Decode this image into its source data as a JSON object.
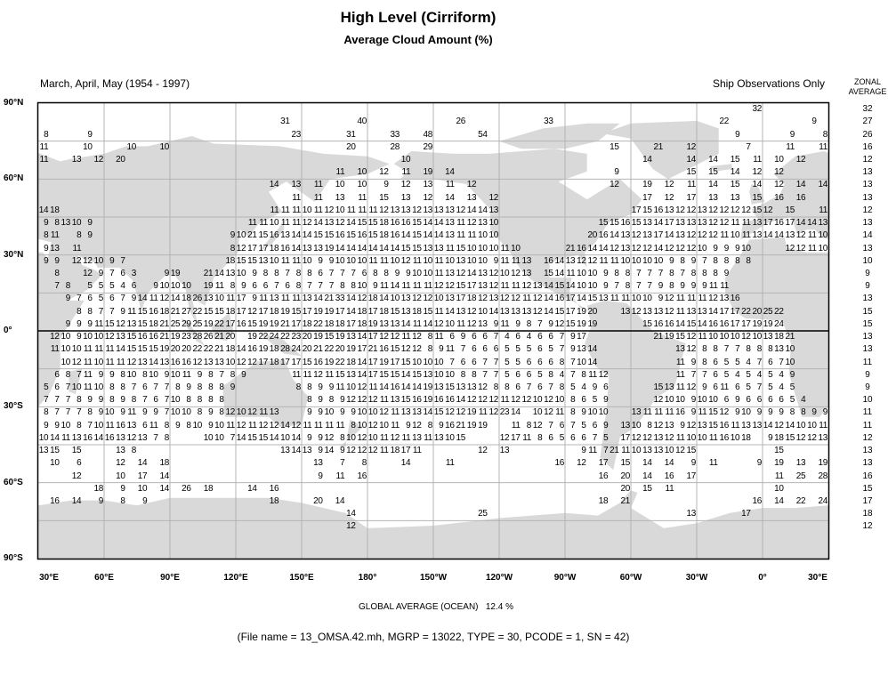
{
  "title": "High Level (Cirriform)",
  "subtitle": "Average Cloud Amount (%)",
  "season": "March, April, May (1954 - 1997)",
  "source_note": "Ship Observations Only",
  "zonal_header": {
    "line1": "ZONAL",
    "line2": "AVERAGE"
  },
  "lat_labels": [
    "90°N",
    "60°N",
    "30°N",
    "0°",
    "30°S",
    "60°S",
    "90°S"
  ],
  "lon_labels": [
    "30°E",
    "60°E",
    "90°E",
    "120°E",
    "150°E",
    "180°",
    "150°W",
    "120°W",
    "90°W",
    "60°W",
    "30°W",
    "0°",
    "30°E"
  ],
  "global_average": {
    "label": "GLOBAL AVERAGE (OCEAN)",
    "value": "12.4 %"
  },
  "file_info": "(File name = 13_OMSA.42.mh, MGRP = 13022, TYPE = 30, PCODE = 1, SN = 42)",
  "colors": {
    "land": "#d9d9d9",
    "grid": "#b4b4b4",
    "equator": "#000000",
    "text": "#000000"
  },
  "map_data": {
    "type": "gridded values map",
    "cell_size_deg": 5,
    "first_cell_west_edge": "30°E",
    "rows": [
      {
        "lat": 87.5,
        "zonal": 32,
        "cells": "- - - - - -|- - - - - -|- - - - - -|- - - - - -|- - - - - -|- - - - - -|- - - - - -|- - - - - -|- - - - - -|- - - - - -|- - - - - 32|- - - - - -"
      },
      {
        "lat": 82.5,
        "zonal": 27,
        "cells": "- - - - - -|- - - - - -|- - - - - -|- - - - 31 -|- - - - - 40|- - - - - -|- - 26 - - -|- - - - 33 -|- - - - - -|- - - - - -|- - 22 - - -|- - - - 9 -"
      },
      {
        "lat": 77.5,
        "zonal": 26,
        "cells": "8 - - - 9 -|- - - - - -|- - - - - -|- - - - - 23|- - - - 31 -|- - 33 - - 48|- - - - 54 -|- - - - - -|- - - - - -|- - - - - -|- - - 9 - -|- - 9 - - 8"
      },
      {
        "lat": 72.5,
        "zonal": 16,
        "cells": "11 - - - 10 -|- - 10 - - 10|- - - - - -|- - - - - -|- - - - 20 -|- - 28 - - 29|- - - - - -|- - - - - -|- - - - 15 -|- - 21 - - 12|- - - - 7 -|- - 11 - - 11"
      },
      {
        "lat": 67.5,
        "zonal": 12,
        "cells": "11 - - 13 - 12|- 20 - - - -|- - - - - -|- - - - - -|- - - - - -|- - - 10 - -|- - - - - -|- - - - - -|- - - - - -|- 14 - - - 14|- 14 - 15 - 11|- 10 - 12 - -"
      },
      {
        "lat": 62.5,
        "zonal": 13,
        "cells": "- - - - - -|- - - - - -|- - - - - -|- - - - - -|- - - 11 - 10|- 12 - 11 - 19|- 14 - - - -|- - - - - -|- - - - 9 -|- - - - - 15|- 15 - 14 - 12|- 12 - - - -"
      },
      {
        "lat": 57.5,
        "zonal": 13,
        "cells": "- - - - - -|- - - - - -|- - - - - -|- - - 14 - 13|- 11 - 10 - 10|- 9 - 12 - 13|- 11 - 12 - -|- - - - - -|- - - - 12 -|- 19 - 12 - 11|- 14 - 15 - 14|- 12 - 14 - 14"
      },
      {
        "lat": 52.5,
        "zonal": 13,
        "cells": "- - - - - -|- - - - - -|- - - - - -|- - - - - 11|- 11 - 13 - 11|- 15 - 13 - 12|- 14 - 13 - 12|- - - - - -|- - - - - -|- 17 - 12 - 17|- 13 - 13 - 15|- 16 - 16 - -"
      },
      {
        "lat": 47.5,
        "zonal": 12,
        "cells": "14 18 - - - -|- - - - - -|- - - - - -|- - - 11 11 11|10 11 12 10 11 11|11 12 13 13 12 13|13 13 12 14 14 13|- - - - - -|- - - - - -|17 15 16 13 12 12|13 12 12 12 12 15|12 - 15 - - 11"
      },
      {
        "lat": 42.5,
        "zonal": 13,
        "cells": "9 8 13 10 9 -|- - - - - -|- - - - - -|- 11 11 10 11 11|12 14 13 12 14 15|15 18 16 16 15 14|14 13 11 12 13 10|- - - - - -|- - - 15 15 16|15 13 14 17 13 13|13 12 12 11 11 13|17 16 17 14 14 13"
      },
      {
        "lat": 37.5,
        "zonal": 14,
        "cells": "8 11 - 8 9 -|- - - - - -|- - - - - 9|10 21 15 16 13 14|14 15 15 16 15 16|15 18 16 14 15 14|14 13 11 11 10 10|- - - - - -|- - 20 16 14 13|12 13 17 14 13 12|12 12 11 10 11 13|14 14 13 12 11 10"
      },
      {
        "lat": 32.5,
        "zonal": 13,
        "cells": "9 13 - 11 - -|- - - - - -|- - - - - 8|12 17 17 18 16 14|13 13 19 14 14 14|14 14 14 15 15 13|13 11 15 10 10 10|11 10 - - - -|21 16 14 14 12 13|12 12 14 12 12 12|10 9 9 9 10 -|- - 12 12 11 10"
      },
      {
        "lat": 27.5,
        "zonal": 10,
        "cells": "9 9 - 12 12 10|9 7 - - - -|- - - - - 18|15 15 13 10 11 11|10 9 9 10 10 10|11 11 10 12 11 10|11 10 13 10 10 9|11 11 13 - 16 14|13 12 12 11 11 10|10 10 10 9 8 9|7 8 8 8 8 -|- - - - - -"
      },
      {
        "lat": 22.5,
        "zonal": 9,
        "cells": "- 8 - - 12 9|7 6 3 - - 9|19 - - 21 14 13|10 9 8 8 7 8|8 6 7 7 7 6|8 8 9 9 10 10|11 13 12 14 13 12|10 12 13 - 15 14|11 10 10 9 8 8|7 7 7 8 7 8|8 8 9 - - -|- - - - - -"
      },
      {
        "lat": 17.5,
        "zonal": 9,
        "cells": "- 7 8 - 5 5|5 4 6 - 9 10|10 10 - 19 11 8|9 6 6 7 6 8|7 7 7 8 8 10|9 11 14 11 11 11|12 12 15 17 13 12|11 11 12 13 14 15|14 10 10 9 7 8|7 7 9 8 9 9|9 11 11 - - -|- - - - - -"
      },
      {
        "lat": 12.5,
        "zonal": 13,
        "cells": "- - 9 7 6 5|6 7 9 14 11 12|14 18 26 13 10 11|17 9 11 13 11 11|13 14 21 33 14 12|18 14 10 13 12 12|10 13 17 18 12 13|12 12 11 12 14 16|17 14 15 13 11 11|10 10 9 12 11 11|11 12 13 16 - -|- - - - - -"
      },
      {
        "lat": 7.5,
        "zonal": 15,
        "cells": "- - - 8 8 7|7 9 11 15 16 18|21 27 22 15 15 18|17 12 17 18 19 15|17 19 19 17 14 18|17 18 15 13 18 15|11 14 13 12 10 14|13 13 13 12 14 15|17 19 20 - - 13|12 13 13 12 11 13|13 14 17 17 22 20|25 22 - - - -"
      },
      {
        "lat": 2.5,
        "zonal": 15,
        "cells": "- - 9 9 9 11|15 12 13 15 18 21|25 29 25 19 22 17|16 15 19 19 21 17|18 22 18 18 17 18|19 13 13 14 11 14|12 10 11 12 13 9|11 9 8 7 9 12|15 19 19 - - -|- 15 16 16 14 15|14 16 16 17 17 19|19 24 - - - -"
      },
      {
        "lat": -2.5,
        "zonal": 13,
        "cells": "- 12 10 9 10 10|12 13 15 16 16 21|19 23 28 26 21 20|- 19 22 24 22 23|20 19 15 19 13 14|17 12 12 11 12 8|11 6 9 6 6 7|4 6 4 6 6 7|9 17 - - - -|- - 21 19 15 12|11 10 10 10 12 10|13 18 21 - - -"
      },
      {
        "lat": -7.5,
        "zonal": 13,
        "cells": "- 11 10 10 11 11|11 14 15 15 15 19|20 20 22 22 21 18|14 16 19 18 28 24|20 21 22 20 19 17|21 16 15 12 12 8|9 11 7 6 6 6|5 5 5 6 5 7|9 13 14 - - -|- - - - 13 12|8 8 7 7 8 8|8 13 10 - - -"
      },
      {
        "lat": -12.5,
        "zonal": 11,
        "cells": "- - 10 12 11 10|11 11 12 13 14 13|16 16 12 13 13 10|12 12 17 18 17 17|15 16 19 22 18 14|17 19 17 15 10 10|10 7 6 6 7 7|5 5 6 6 6 8|7 10 14 - - -|- - - - 11 9|8 6 5 5 4 7|6 7 10 - - -"
      },
      {
        "lat": -17.5,
        "zonal": 9,
        "cells": "- 6 8 7 11 9|9 8 10 8 10 9|10 11 9 8 7 8|9 - - - - 11|11 12 11 15 13 14|17 15 15 14 15 13|10 10 8 8 7 7|5 6 6 5 8 4|7 8 11 12 - -|- - - - 11 7|7 6 5 4 5 4|5 4 9 - - -"
      },
      {
        "lat": -22.5,
        "zonal": 9,
        "cells": "5 6 7 10 11 10|8 8 7 6 7 7|8 9 8 8 8 9|- - - - - 8|8 9 9 11 10 12|11 14 16 14 14 19|13 15 13 13 12 8|8 6 7 6 7 8|5 4 9 6 - -|- - 15 13 11 12|9 6 11 6 5 7|5 4 5 - - -"
      },
      {
        "lat": -27.5,
        "zonal": 10,
        "cells": "7 7 7 8 9 9|8 9 8 7 6 7|10 8 8 8 8 -|- - - - - -|8 9 8 9 12 12|12 11 13 15 16 19|16 16 14 12 12 12|11 12 12 10 12 10|8 6 5 9 - -|- - 12 10 10 9|10 10 6 9 6 6|6 6 5 4 - -"
      },
      {
        "lat": -32.5,
        "zonal": 11,
        "cells": "8 7 7 7 8 9|10 9 11 9 9 7|10 10 8 9 8 12|10 12 11 13 - -|9 9 10 9 9 10|10 12 11 13 13 14|15 12 12 19 11 12|23 14 - 10 12 11|8 9 10 10 - -|13 11 11 11 16 9|11 15 12 9 10 9|9 9 8 8 9 9"
      },
      {
        "lat": -37.5,
        "zonal": 11,
        "cells": "9 9 10 8 7 10|11 16 13 6 11 8|9 8 10 9 10 11|12 11 12 12 14 12|11 11 11 11 8 10|12 10 11 9 12 8|9 16 21 19 19 -|- 11 8 12 7 6|7 5 6 9 - 13|10 8 12 13 9 12|13 15 16 11 13 13|14 12 14 10 10 11"
      },
      {
        "lat": -42.5,
        "zonal": 12,
        "cells": "10 14 11 13 16 14|16 13 12 13 7 8|- - - 10 10 7|14 15 15 14 10 14|9 9 12 8 10 12|10 11 12 11 13 11|13 10 15 - - -|12 17 11 8 6 5|6 6 7 5 - 17|12 12 13 12 11 10|10 11 16 10 18 -|9 18 15 12 12 13"
      },
      {
        "lat": -47.5,
        "zonal": 13,
        "cells": "13 15 - 15 - -|- 13 8 - - -|- - - - - -|- - - - 13 14|13 9 14 9 12 12|12 11 18 17 11 -|- - - - 12 -|13 - - - - -|- 9 11 7 21 11|10 13 13 10 12 15|- - - - - -|- 15 - - - -"
      },
      {
        "lat": -52.5,
        "zonal": 13,
        "cells": "- 10 - 6 - -|- 12 - 14 - 18|- - - - - -|- - - - - -|- 13 - 7 - 8|- - - 14 - -|- 11 - - - -|- - - - - 16|- 12 - 17 - 15|- 14 - 14 - 9|- 11 - - - 9|- 19 - 13 - 19"
      },
      {
        "lat": -57.5,
        "zonal": 16,
        "cells": "- - - 12 - -|- 10 - 17 - 14|- - - - - -|- - - - - -|- 9 - 11 - 16|- - - - - -|- - - - - -|- - - - - -|- - - 16 - 20|- 14 - 16 - 17|- - - - - -|- 11 - 25 - 28"
      },
      {
        "lat": -62.5,
        "zonal": 15,
        "cells": "- - - - - 18|- 9 - 10 - 14|- 26 - 18 - -|- 14 - 16 - -|- - - - - -|- - - - - -|- - - - - -|- - - - - -|- - - - - 20|- 15 - 11 - -|- - - - - -|- 10 - - - -"
      },
      {
        "lat": -67.5,
        "zonal": 17,
        "cells": "- 16 - 14 - 9|- 8 - 9 - -|- - - - - -|- - - 18 - -|- 20 - 14 - -|- - - - - -|- - - - - -|- - - - - -|- - - 18 - 21|- - - - - -|- - - - - 16|- 14 - 22 - 24"
      },
      {
        "lat": -72.5,
        "zonal": 18,
        "cells": "- - - - - -|- - - - - -|- - - - - -|- - - - - -|- - - - 14 -|- - - - - -|- - - - 25 -|- - - - - -|- - - - - -|- - - - - 13|- - - - 17 -|- - - - - -"
      },
      {
        "lat": -77.5,
        "zonal": 12,
        "cells": "- - - - - -|- - - - - -|- - - - - -|- - - - - -|- - - - 12 -|- - - - - -|- - - - - -|- - - - - -|- - - - - -|- - - - - -|- - - - - -|- - - - - -"
      }
    ]
  }
}
